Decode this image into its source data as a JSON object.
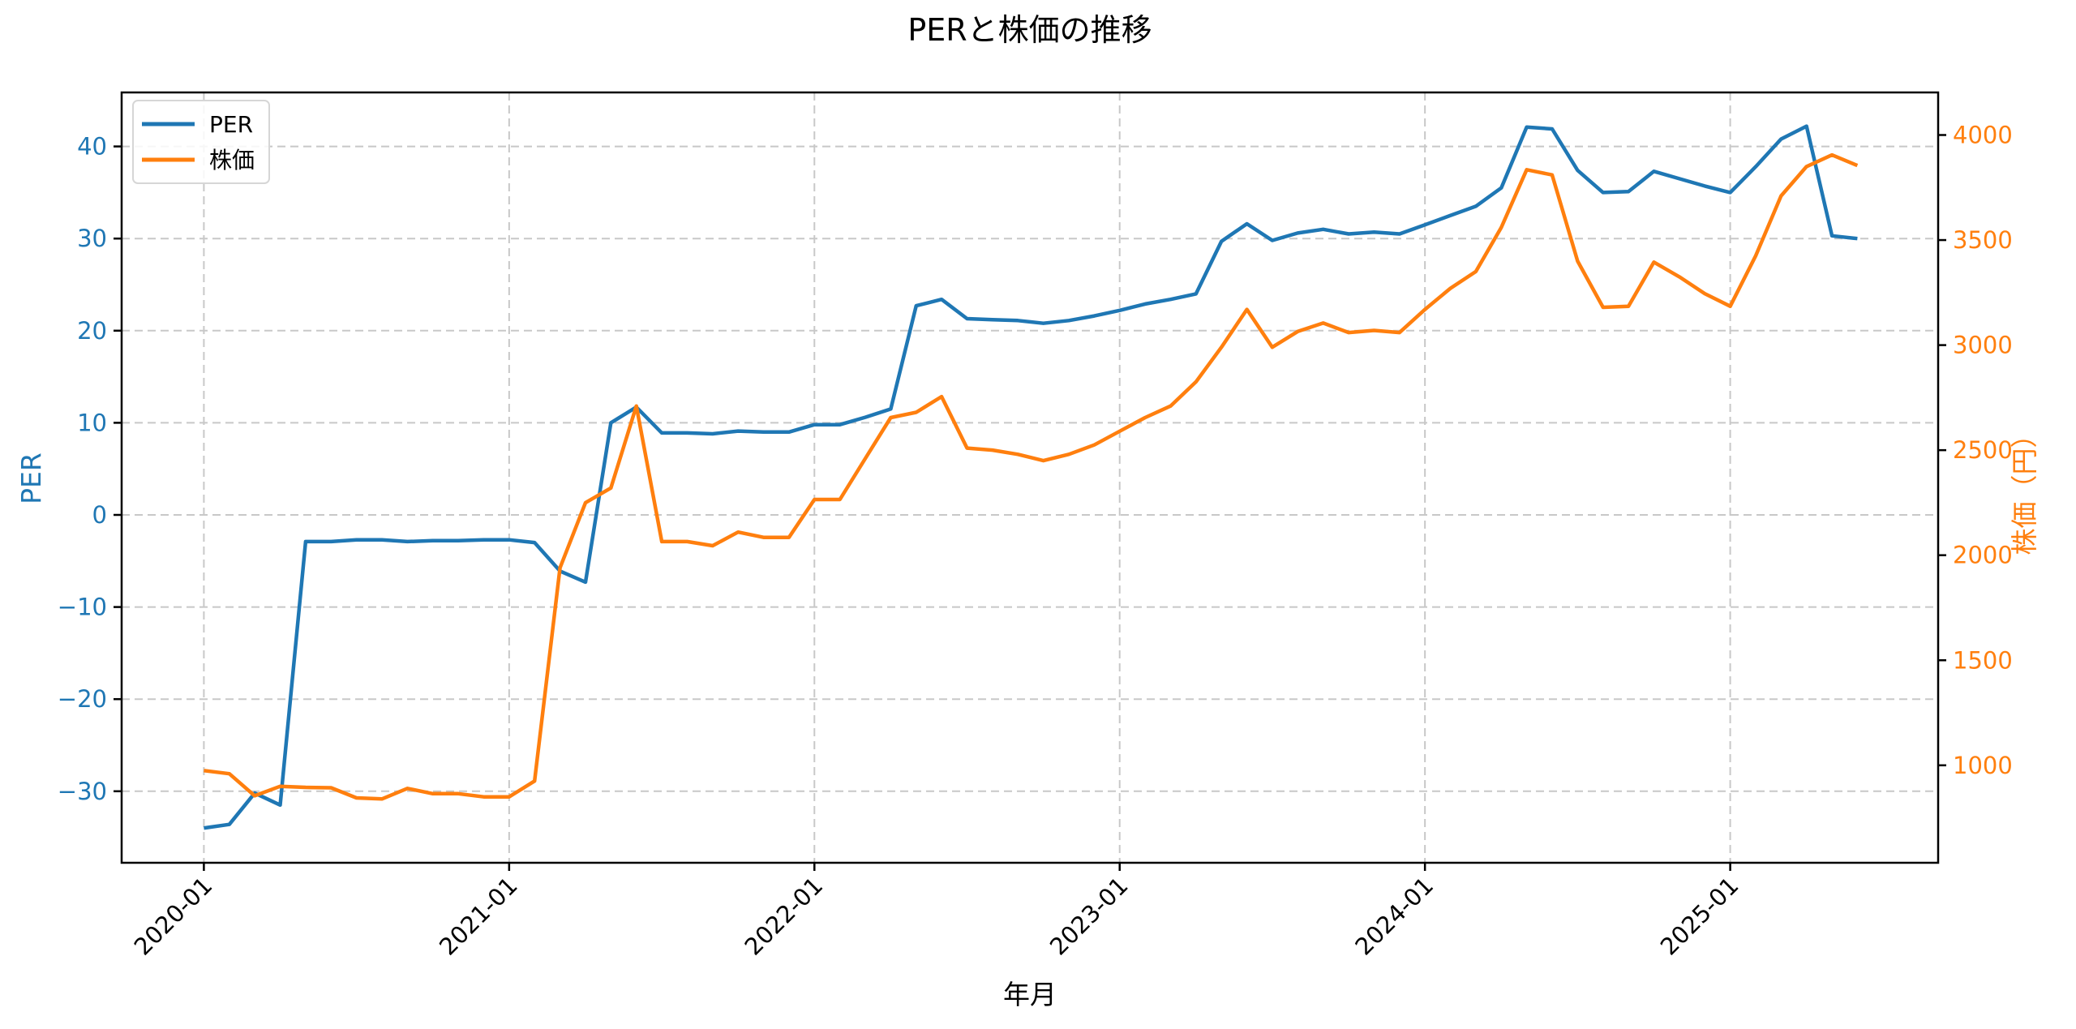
{
  "chart_data": {
    "type": "line",
    "title": "PERと株価の推移",
    "xlabel": "年月",
    "ylabel": "PER",
    "ylabel_right": "株価（円）",
    "x_tick_labels": [
      "2020-01",
      "2021-01",
      "2022-01",
      "2023-01",
      "2024-01",
      "2025-01"
    ],
    "y_ticks_left": [
      -30,
      -20,
      -10,
      0,
      10,
      20,
      30,
      40
    ],
    "y_ticks_right": [
      1000,
      1500,
      2000,
      2500,
      3000,
      3500,
      4000
    ],
    "ylim_left": [
      -37.5,
      45.8
    ],
    "ylim_right": [
      580,
      4210
    ],
    "grid": true,
    "legend_position": "upper left",
    "x": [
      "2020-01",
      "2020-02",
      "2020-03",
      "2020-04",
      "2020-05",
      "2020-06",
      "2020-07",
      "2020-08",
      "2020-09",
      "2020-10",
      "2020-11",
      "2020-12",
      "2021-01",
      "2021-02",
      "2021-03",
      "2021-04",
      "2021-05",
      "2021-06",
      "2021-07",
      "2021-08",
      "2021-09",
      "2021-10",
      "2021-11",
      "2021-12",
      "2022-01",
      "2022-02",
      "2022-03",
      "2022-04",
      "2022-05",
      "2022-06",
      "2022-07",
      "2022-08",
      "2022-09",
      "2022-10",
      "2022-11",
      "2022-12",
      "2023-01",
      "2023-02",
      "2023-03",
      "2023-04",
      "2023-05",
      "2023-06",
      "2023-07",
      "2023-08",
      "2023-09",
      "2023-10",
      "2023-11",
      "2023-12",
      "2024-01",
      "2024-02",
      "2024-03",
      "2024-04",
      "2024-05",
      "2024-06",
      "2024-07",
      "2024-08",
      "2024-09",
      "2024-10",
      "2024-11",
      "2024-12",
      "2025-01",
      "2025-02",
      "2025-03",
      "2025-04",
      "2025-05",
      "2025-06"
    ],
    "series": [
      {
        "name": "PER",
        "axis": "left",
        "color": "#1f77b4",
        "values": [
          -34.0,
          -33.6,
          -30.2,
          -31.5,
          -2.9,
          -2.9,
          -2.7,
          -2.7,
          -2.9,
          -2.8,
          -2.8,
          -2.7,
          -2.7,
          -3.0,
          -6.1,
          -7.3,
          10.0,
          11.7,
          8.9,
          8.9,
          8.8,
          9.1,
          9.0,
          9.0,
          9.8,
          9.8,
          10.6,
          11.5,
          22.7,
          23.4,
          21.3,
          21.2,
          21.1,
          20.8,
          21.1,
          21.6,
          22.2,
          22.9,
          23.4,
          24.0,
          29.7,
          31.6,
          29.8,
          30.6,
          31.0,
          30.5,
          30.7,
          30.5,
          31.5,
          32.5,
          33.5,
          35.5,
          42.1,
          41.9,
          37.4,
          35.0,
          35.1,
          37.3,
          36.5,
          35.7,
          35.0,
          37.8,
          40.8,
          42.2,
          30.3,
          30.0
        ]
      },
      {
        "name": "株価",
        "axis": "right",
        "color": "#ff7f0e",
        "values": [
          975,
          960,
          855,
          900,
          895,
          893,
          845,
          840,
          890,
          865,
          865,
          850,
          850,
          925,
          1940,
          2250,
          2320,
          2710,
          2065,
          2065,
          2045,
          2110,
          2085,
          2085,
          2265,
          2265,
          2460,
          2655,
          2680,
          2755,
          2510,
          2500,
          2480,
          2450,
          2480,
          2525,
          2590,
          2655,
          2710,
          2825,
          2990,
          3170,
          2990,
          3065,
          3105,
          3060,
          3070,
          3060,
          3170,
          3270,
          3350,
          3560,
          3835,
          3810,
          3400,
          3180,
          3185,
          3395,
          3325,
          3245,
          3185,
          3425,
          3710,
          3850,
          3905,
          3855
        ]
      }
    ]
  },
  "legend": {
    "items": [
      {
        "label": "PER",
        "color": "#1f77b4"
      },
      {
        "label": "株価",
        "color": "#ff7f0e"
      }
    ]
  }
}
